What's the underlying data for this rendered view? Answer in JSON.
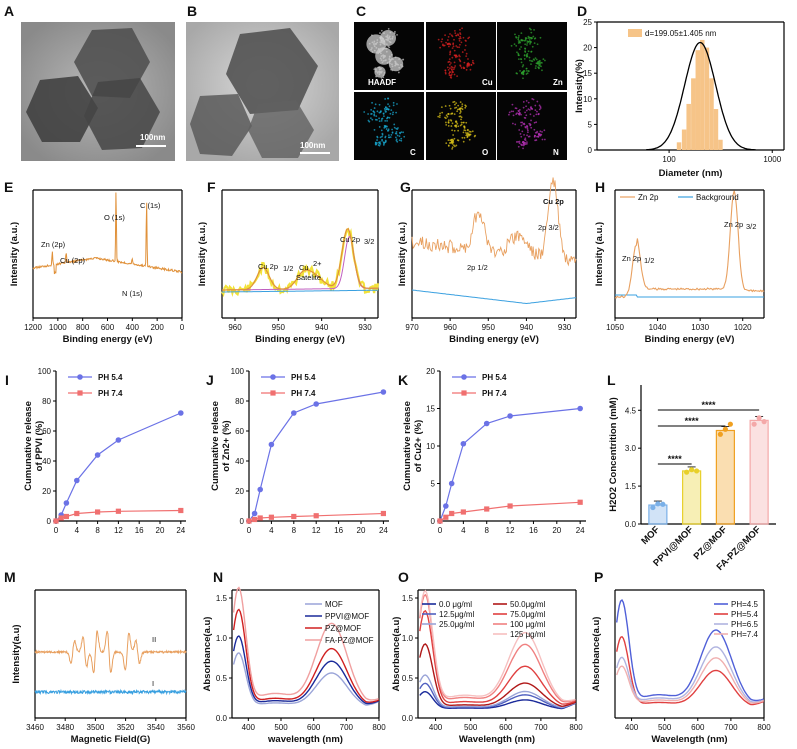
{
  "figure": {
    "panels": {
      "A": {
        "label": "A",
        "scale_bar": "100nm"
      },
      "B": {
        "label": "B",
        "scale_bar": "100nm"
      },
      "C": {
        "label": "C",
        "maps": [
          "HAADF",
          "Cu",
          "Zn",
          "C",
          "O",
          "N"
        ],
        "map_colors": [
          "#9a9a9a",
          "#d42020",
          "#2ea02e",
          "#18a8d0",
          "#d8c018",
          "#b030b0"
        ]
      }
    }
  },
  "chart_data": [
    {
      "id": "D",
      "type": "bar",
      "label": "D",
      "xlabel": "Diameter (nm)",
      "ylabel": "Intensity(%)",
      "xscale": "log",
      "xlim": [
        20,
        1300
      ],
      "ylim": [
        0,
        25
      ],
      "yticks": [
        "0",
        "5",
        "10",
        "15",
        "20",
        "25"
      ],
      "xticks": [
        "100",
        "1000"
      ],
      "legend": "d=199.05±1.405 nm",
      "bins": [
        [
          125,
          1.5
        ],
        [
          140,
          4
        ],
        [
          155,
          9
        ],
        [
          172,
          14
        ],
        [
          190,
          19.5
        ],
        [
          210,
          21.5
        ],
        [
          233,
          20
        ],
        [
          258,
          14
        ],
        [
          285,
          8
        ],
        [
          315,
          2
        ]
      ],
      "fit_peak_x": 200,
      "fit_peak_y": 21,
      "fit_sigma_log": 0.15,
      "colors": {
        "bar": "#f6c488",
        "fit": "#000000"
      }
    },
    {
      "id": "E",
      "type": "line",
      "label": "E",
      "xlabel": "Binding energy (eV)",
      "ylabel": "Intensity (a.u.)",
      "xlim": [
        1200,
        0
      ],
      "xticks": [
        "1200",
        "1000",
        "800",
        "600",
        "400",
        "200",
        "0"
      ],
      "annotations": [
        "Zn (2p)",
        "Cu (2p)",
        "O (1s)",
        "C (1s)",
        "N (1s)"
      ],
      "color": "#e0913a"
    },
    {
      "id": "F",
      "type": "line",
      "label": "F",
      "xlabel": "Binding energy (eV)",
      "ylabel": "Intensity (a.u.)",
      "xlim": [
        963,
        927
      ],
      "xticks": [
        "960",
        "950",
        "940",
        "930"
      ],
      "annotations": [
        "Cu 2p",
        "1/2",
        "Cu",
        "2+",
        "Satelite",
        "Cu 2p",
        "3/2"
      ],
      "colors": {
        "data": "#f2e23a",
        "envelope": "#e0913a",
        "bg": "#3aa0e0",
        "p1": "#c060c0"
      }
    },
    {
      "id": "G",
      "type": "line",
      "label": "G",
      "xlabel": "Binding energy (eV)",
      "ylabel": "Intensity (a.u.)",
      "xlim": [
        970,
        927
      ],
      "xticks": [
        "970",
        "960",
        "950",
        "940",
        "930"
      ],
      "title": "Cu 2p",
      "annotations": [
        "2p 1/2",
        "2p 3/2"
      ],
      "colors": {
        "data": "#e8a060",
        "bg": "#3aa0e0"
      }
    },
    {
      "id": "H",
      "type": "line",
      "label": "H",
      "xlabel": "Binding energy (eV)",
      "ylabel": "Intensity (a.u.)",
      "xlim": [
        1050,
        1015
      ],
      "xticks": [
        "1050",
        "1040",
        "1030",
        "1020"
      ],
      "legend": [
        "Zn 2p",
        "Background"
      ],
      "annotations": [
        "Zn 2p",
        "1/2",
        "Zn 2p",
        "3/2"
      ],
      "colors": {
        "data": "#e8a060",
        "bg": "#3aa0e0"
      }
    },
    {
      "id": "I",
      "type": "line",
      "label": "I",
      "xlabel": "",
      "ylabel_lines": [
        "Cumunative release",
        "of PPVI (%)"
      ],
      "x": [
        0,
        1,
        2,
        4,
        8,
        12,
        24
      ],
      "xlim": [
        0,
        25
      ],
      "ylim": [
        0,
        100
      ],
      "xticks": [
        "0",
        "4",
        "8",
        "12",
        "16",
        "20",
        "24"
      ],
      "yticks": [
        "0",
        "20",
        "40",
        "60",
        "80",
        "100"
      ],
      "series": [
        {
          "name": "PH 5.4",
          "values": [
            0,
            4,
            12,
            27,
            44,
            54,
            72
          ],
          "color": "#6b72e6"
        },
        {
          "name": "PH 7.4",
          "values": [
            0,
            2,
            3,
            5,
            6,
            6.5,
            7
          ],
          "color": "#f07070"
        }
      ]
    },
    {
      "id": "J",
      "type": "line",
      "label": "J",
      "xlabel": "",
      "ylabel_lines": [
        "Cumunative release",
        "of Zn2+ (%)"
      ],
      "x": [
        0,
        1,
        2,
        4,
        8,
        12,
        24
      ],
      "xlim": [
        0,
        25
      ],
      "ylim": [
        0,
        100
      ],
      "xticks": [
        "0",
        "4",
        "8",
        "12",
        "16",
        "20",
        "24"
      ],
      "yticks": [
        "0",
        "20",
        "40",
        "60",
        "80",
        "100"
      ],
      "series": [
        {
          "name": "PH 5.4",
          "values": [
            0,
            5,
            21,
            51,
            72,
            78,
            86
          ],
          "color": "#6b72e6"
        },
        {
          "name": "PH 7.4",
          "values": [
            0,
            1,
            2,
            2.5,
            3,
            3.5,
            5
          ],
          "color": "#f07070"
        }
      ]
    },
    {
      "id": "K",
      "type": "line",
      "label": "K",
      "xlabel": "",
      "ylabel_lines": [
        "Cumunative release",
        "of Cu2+ (%)"
      ],
      "x": [
        0,
        1,
        2,
        4,
        8,
        12,
        24
      ],
      "xlim": [
        0,
        25
      ],
      "ylim": [
        0,
        20
      ],
      "xticks": [
        "0",
        "4",
        "8",
        "12",
        "16",
        "20",
        "24"
      ],
      "yticks": [
        "0",
        "5",
        "10",
        "15",
        "20"
      ],
      "series": [
        {
          "name": "PH 5.4",
          "values": [
            0,
            2,
            5,
            10.3,
            13,
            14,
            15
          ],
          "color": "#6b72e6"
        },
        {
          "name": "PH 7.4",
          "values": [
            0,
            0.5,
            1,
            1.2,
            1.6,
            2.0,
            2.5
          ],
          "color": "#f07070"
        }
      ]
    },
    {
      "id": "L",
      "type": "bar",
      "label": "L",
      "ylabel": "H2O2 Concentrition (mM)",
      "ylim": [
        0,
        5.5
      ],
      "yticks": [
        "0.0",
        "1.5",
        "3.0",
        "4.5"
      ],
      "categories": [
        "MOF",
        "PPVI@MOF",
        "PZ@MOF",
        "FA-PZ@MOF"
      ],
      "values": [
        0.75,
        2.1,
        3.7,
        4.1
      ],
      "points": [
        [
          0.65,
          0.8,
          0.78
        ],
        [
          2.05,
          2.15,
          2.1
        ],
        [
          3.55,
          3.75,
          3.95
        ],
        [
          3.95,
          4.2,
          4.05
        ]
      ],
      "colors": [
        "#7ab0e8",
        "#e8d02a",
        "#f0a020",
        "#f4a8a8"
      ],
      "significance": [
        "****",
        "****",
        "****"
      ]
    },
    {
      "id": "M",
      "type": "line",
      "label": "M",
      "xlabel": "Magnetic Field(G)",
      "ylabel": "Intensity(a.u)",
      "xlim": [
        3460,
        3560
      ],
      "xticks": [
        "3460",
        "3480",
        "3500",
        "3520",
        "3540",
        "3560"
      ],
      "series_labels": [
        "II",
        "I"
      ],
      "colors": {
        "II": "#e8a060",
        "I": "#3aa0e0"
      }
    },
    {
      "id": "N",
      "type": "line",
      "label": "N",
      "xlabel": "wavelength (nm)",
      "ylabel": "Absorbance(a.u)",
      "xlim": [
        350,
        800
      ],
      "ylim": [
        0,
        1.6
      ],
      "xticks": [
        "400",
        "500",
        "600",
        "700",
        "800"
      ],
      "yticks": [
        "0.0",
        "0.5",
        "1.0",
        "1.5"
      ],
      "series": [
        {
          "name": "MOF",
          "color": "#9aa4d8",
          "p1": 0.68,
          "p2": 0.44
        },
        {
          "name": "PPVI@MOF",
          "color": "#1a2a9a",
          "p1": 0.88,
          "p2": 0.58
        },
        {
          "name": "PZ@MOF",
          "color": "#d02020",
          "p1": 1.2,
          "p2": 0.73
        },
        {
          "name": "FA-PZ@MOF",
          "color": "#f0a0a0",
          "p1": 1.45,
          "p2": 1.03
        }
      ]
    },
    {
      "id": "O",
      "type": "line",
      "label": "O",
      "xlabel": "Wavelength (nm)",
      "ylabel": "Absorbance(a.u)",
      "xlim": [
        350,
        800
      ],
      "ylim": [
        0,
        1.6
      ],
      "xticks": [
        "400",
        "500",
        "600",
        "700",
        "800"
      ],
      "yticks": [
        "0.0",
        "0.5",
        "1.0",
        "1.5"
      ],
      "series": [
        {
          "name": "0.0 μg/ml",
          "color": "#1a2a9a",
          "p1": 0.22,
          "p2": 0.12
        },
        {
          "name": "12.5μg/ml",
          "color": "#5060c0",
          "p1": 0.32,
          "p2": 0.18
        },
        {
          "name": "25.0μg/ml",
          "color": "#9aa4d8",
          "p1": 0.42,
          "p2": 0.22
        },
        {
          "name": "50.0μg/ml",
          "color": "#b01818",
          "p1": 0.8,
          "p2": 0.32
        },
        {
          "name": "75.0μg/ml",
          "color": "#e04040",
          "p1": 1.2,
          "p2": 0.52
        },
        {
          "name": "100 μg/ml",
          "color": "#f08080",
          "p1": 1.38,
          "p2": 0.78
        },
        {
          "name": "125 μg/ml",
          "color": "#f6c0c0",
          "p1": 1.42,
          "p2": 0.92
        }
      ]
    },
    {
      "id": "P",
      "type": "line",
      "label": "P",
      "xlabel": "Wavelength (nm)",
      "ylabel": "Absorbance(a.u)",
      "xlim": [
        350,
        800
      ],
      "xticks": [
        "400",
        "500",
        "600",
        "700",
        "800"
      ],
      "series": [
        {
          "name": "PH=4.5",
          "color": "#5060d8",
          "p1": 1.3,
          "p2": 0.95
        },
        {
          "name": "PH=5.4",
          "color": "#e04040",
          "p1": 0.88,
          "p2": 0.47
        },
        {
          "name": "PH=6.5",
          "color": "#b0b4e0",
          "p1": 0.6,
          "p2": 0.75
        },
        {
          "name": "PH=7.4",
          "color": "#f0b0b0",
          "p1": 0.5,
          "p2": 0.62
        }
      ]
    }
  ]
}
